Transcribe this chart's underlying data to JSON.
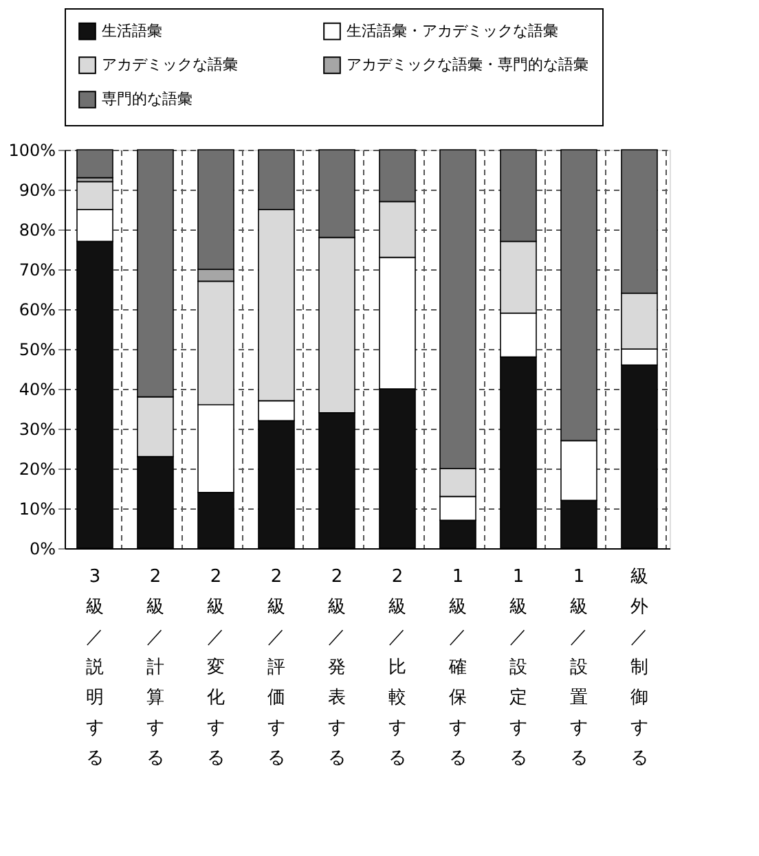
{
  "chart_data": {
    "type": "bar",
    "stacked": true,
    "categories": [
      "3級／説明する",
      "2級／計算する",
      "2級／変化する",
      "2級／評価する",
      "2級／発表する",
      "2級／比較する",
      "1級／確保する",
      "1級／設定する",
      "1級／設置する",
      "級外／制御する"
    ],
    "series": [
      {
        "name": "生活語彙",
        "color": "#111111",
        "values": [
          77,
          23,
          14,
          32,
          34,
          40,
          7,
          48,
          12,
          46
        ]
      },
      {
        "name": "生活語彙・アカデミックな語彙",
        "color": "#ffffff",
        "values": [
          8,
          0,
          22,
          5,
          0,
          33,
          6,
          11,
          15,
          4
        ]
      },
      {
        "name": "アカデミックな語彙",
        "color": "#d9d9d9",
        "values": [
          7,
          15,
          31,
          48,
          44,
          14,
          7,
          18,
          0,
          14
        ]
      },
      {
        "name": "アカデミックな語彙・専門的な語彙",
        "color": "#a6a6a6",
        "values": [
          1,
          0,
          3,
          0,
          0,
          0,
          0,
          0,
          0,
          0
        ]
      },
      {
        "name": "専門的な語彙",
        "color": "#707070",
        "values": [
          7,
          62,
          30,
          15,
          22,
          13,
          80,
          23,
          73,
          36
        ]
      }
    ],
    "ylim": [
      0,
      100
    ],
    "yticks": [
      {
        "value": 0,
        "label": "0%"
      },
      {
        "value": 10,
        "label": "10%"
      },
      {
        "value": 20,
        "label": "20%"
      },
      {
        "value": 30,
        "label": "30%"
      },
      {
        "value": 40,
        "label": "40%"
      },
      {
        "value": 50,
        "label": "50%"
      },
      {
        "value": 60,
        "label": "60%"
      },
      {
        "value": 70,
        "label": "70%"
      },
      {
        "value": 80,
        "label": "80%"
      },
      {
        "value": 90,
        "label": "90%"
      },
      {
        "value": 100,
        "label": "100%"
      }
    ],
    "grid": true,
    "legend": "top"
  }
}
